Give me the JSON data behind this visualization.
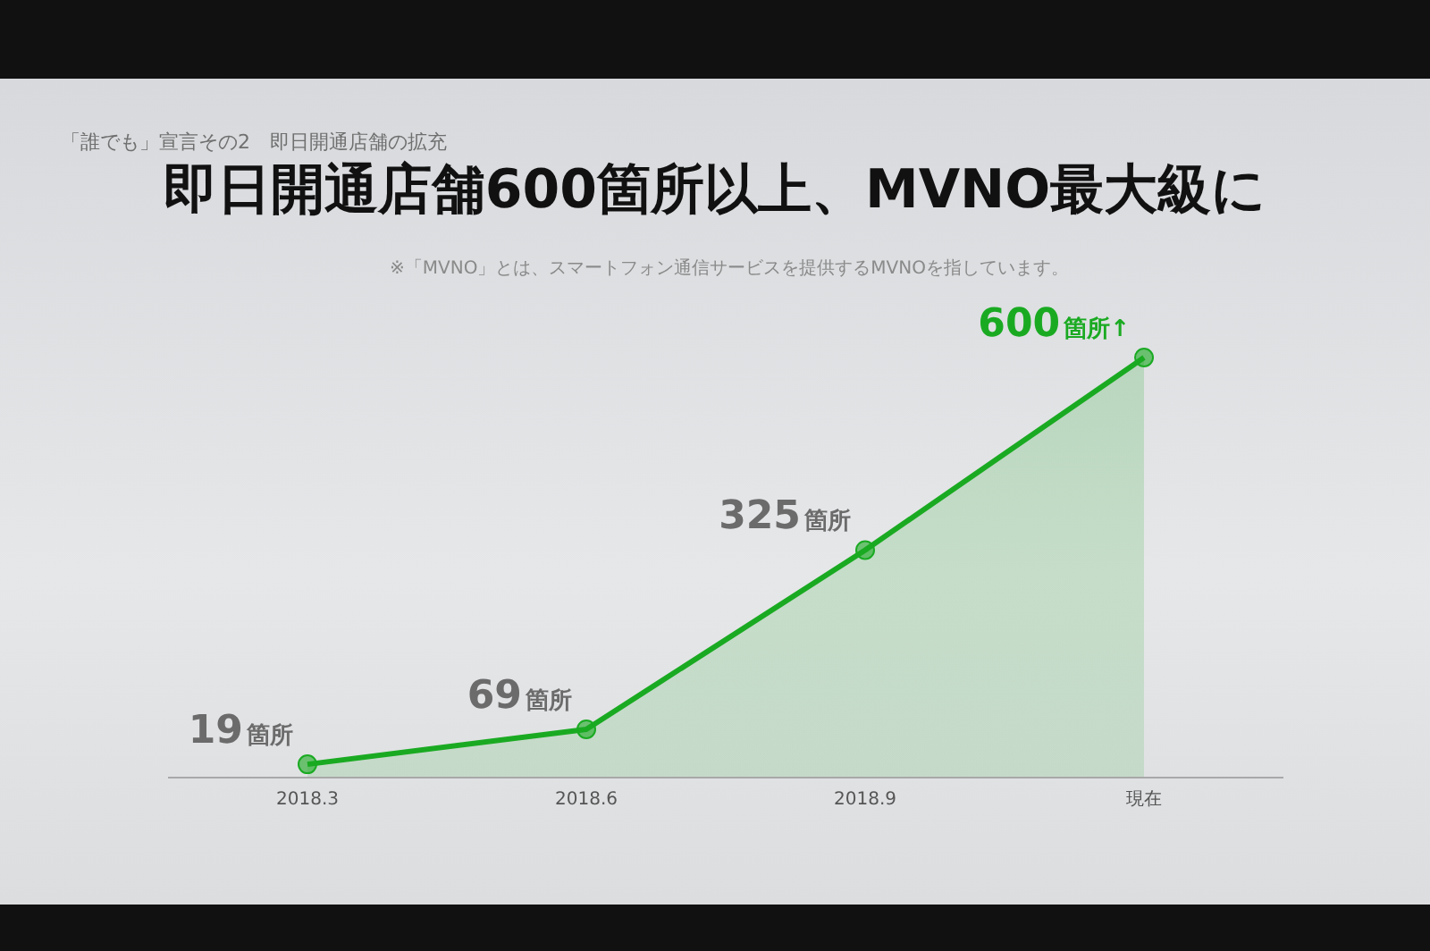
{
  "chart_data": {
    "type": "area",
    "title": "即日開通店舗600箇所以上、MVNO最大級に",
    "subtitle": "※「MVNO」とは、スマートフォン通信サービスを提供するMVNOを指しています。",
    "annotations": [
      "「誰でも」宣言その2　即日開通店舗の拡充"
    ],
    "categories": [
      "2018.3",
      "2018.6",
      "2018.9",
      "現在"
    ],
    "values": [
      19,
      69,
      325,
      600
    ],
    "value_labels": [
      "19箇所",
      "69箇所",
      "325箇所",
      "600箇所↑"
    ],
    "color": "#1aaa22",
    "marker": "circle"
  }
}
